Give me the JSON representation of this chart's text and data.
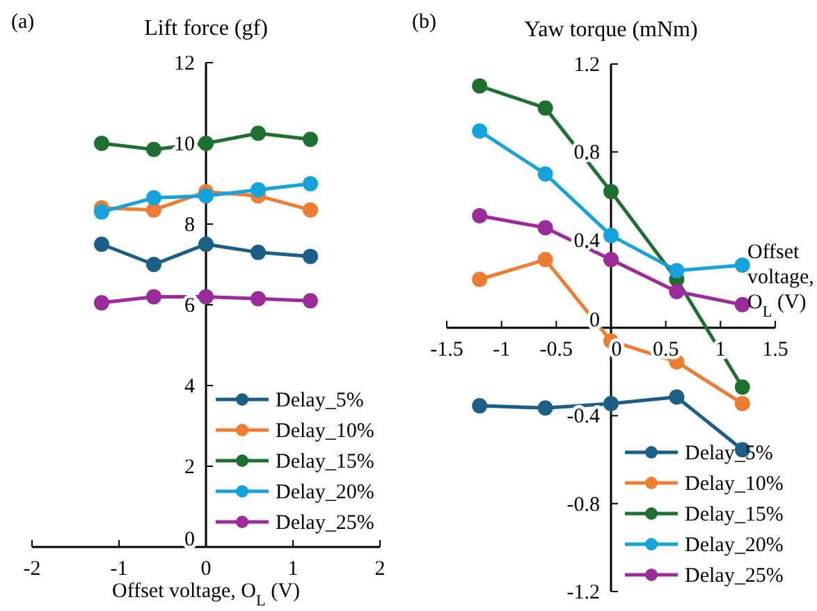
{
  "chart_data": [
    {
      "type": "line",
      "annotations": [
        "(a)"
      ],
      "ylabel": "Lift force (gf)",
      "xlabel": "Offset voltage, O$_{L}$ (V)",
      "x": [
        -1.2,
        -0.6,
        0,
        0.6,
        1.2
      ],
      "xlim": [
        -2,
        2
      ],
      "xticks": [
        -2,
        -1,
        0,
        1,
        2
      ],
      "ylim": [
        0,
        12
      ],
      "yticks": [
        0,
        2,
        4,
        6,
        8,
        10,
        12
      ],
      "marker": "circle",
      "legend": "bottom right",
      "grid": false,
      "series": [
        {
          "name": "Delay_5%",
          "color": "#1b5e86",
          "values": [
            7.5,
            7.0,
            7.5,
            7.3,
            7.2
          ]
        },
        {
          "name": "Delay_10%",
          "color": "#ee7d31",
          "values": [
            8.4,
            8.35,
            8.8,
            8.7,
            8.35
          ]
        },
        {
          "name": "Delay_15%",
          "color": "#1e7030",
          "values": [
            10.0,
            9.85,
            10.0,
            10.25,
            10.1
          ]
        },
        {
          "name": "Delay_20%",
          "color": "#14a3dc",
          "values": [
            8.3,
            8.65,
            8.7,
            8.85,
            9.0
          ]
        },
        {
          "name": "Delay_25%",
          "color": "#9b2b9b",
          "values": [
            6.05,
            6.2,
            6.2,
            6.15,
            6.1
          ]
        }
      ]
    },
    {
      "type": "line",
      "annotations": [
        "(b)"
      ],
      "ylabel": "Yaw torque (mNm)",
      "xlabel": "Offset voltage, O$_{L}$ (V)",
      "x": [
        -1.2,
        -0.6,
        0,
        0.6,
        1.2
      ],
      "xlim": [
        -1.5,
        1.5
      ],
      "xticks": [
        -1.5,
        -1,
        -0.5,
        0,
        0.5,
        1,
        1.5
      ],
      "ylim": [
        -1.2,
        1.2
      ],
      "yticks": [
        -1.2,
        -0.8,
        -0.4,
        0,
        0.4,
        0.8,
        1.2
      ],
      "marker": "circle",
      "legend": "bottom right",
      "grid": false,
      "series": [
        {
          "name": "Delay_5%",
          "color": "#1b5e86",
          "values": [
            -0.355,
            -0.365,
            -0.345,
            -0.315,
            -0.555
          ]
        },
        {
          "name": "Delay_10%",
          "color": "#ee7d31",
          "values": [
            0.22,
            0.31,
            -0.06,
            -0.155,
            -0.345
          ]
        },
        {
          "name": "Delay_15%",
          "color": "#1e7030",
          "values": [
            1.1,
            1.0,
            0.62,
            0.22,
            -0.27
          ]
        },
        {
          "name": "Delay_20%",
          "color": "#14a3dc",
          "values": [
            0.895,
            0.7,
            0.42,
            0.26,
            0.285
          ]
        },
        {
          "name": "Delay_25%",
          "color": "#9b2b9b",
          "values": [
            0.51,
            0.455,
            0.31,
            0.165,
            0.105
          ]
        }
      ]
    }
  ]
}
